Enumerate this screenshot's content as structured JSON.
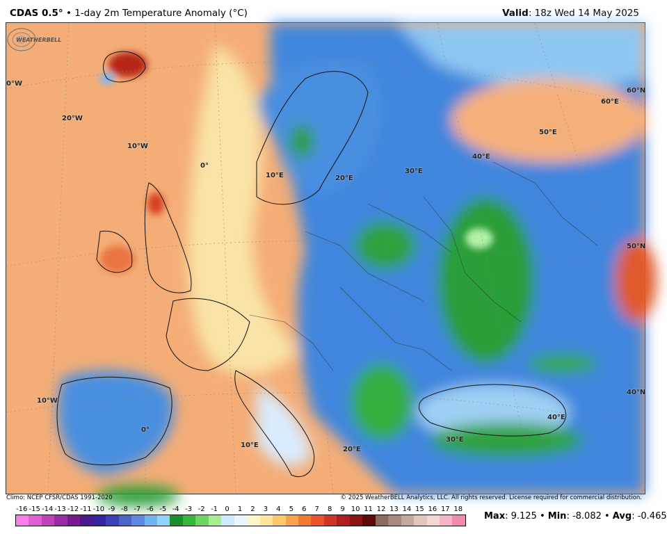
{
  "header": {
    "model": "CDAS 0.5°",
    "separator": "•",
    "product": "1-day 2m Temperature Anomaly (°C)",
    "valid_label": "Valid",
    "valid_value": ": 18z Wed 14 May 2025"
  },
  "map": {
    "grid_labels": [
      "0°W",
      "20°W",
      "10°W",
      "0°",
      "10°E",
      "20°E",
      "30°E",
      "40°E",
      "50°E",
      "60°E",
      "60°N",
      "50°N",
      "40°N",
      "10°W",
      "0°",
      "10°E",
      "20°E",
      "30°E",
      "40°E"
    ],
    "logo_text": "WEATHERBELL"
  },
  "footer": {
    "climo": "Climo: NCEP CFSR/CDAS 1991-2020",
    "copyright": "© 2025 WeatherBELL Analytics, LLC. All rights reserved. License required for commercial distribution."
  },
  "colorbar": {
    "ticks": [
      "-16",
      "-15",
      "-14",
      "-13",
      "-12",
      "-11",
      "-10",
      "-9",
      "-8",
      "-7",
      "-6",
      "-5",
      "-4",
      "-3",
      "-2",
      "-1",
      "0",
      "1",
      "2",
      "3",
      "4",
      "5",
      "6",
      "7",
      "8",
      "9",
      "10",
      "11",
      "12",
      "13",
      "14",
      "15",
      "16",
      "17",
      "18"
    ],
    "colors": [
      "#f57fe6",
      "#e05fd3",
      "#c142bd",
      "#9c2aa5",
      "#7a1890",
      "#4a1a8f",
      "#3624a0",
      "#3b3fb8",
      "#4a64c8",
      "#5c8ae0",
      "#71b5f0",
      "#8fd3ff",
      "#1a8f2a",
      "#36b63b",
      "#6fd55f",
      "#a6ee8f",
      "#cfe9ff",
      "#e9f5ff",
      "#fff7c9",
      "#fde59a",
      "#fbc96c",
      "#f7a24c",
      "#f27a32",
      "#e9532a",
      "#d33226",
      "#b01f1f",
      "#8a1414",
      "#5c0a0a",
      "#8c6a5e",
      "#a8877c",
      "#c6a79c",
      "#e2c6bc",
      "#f2d8d0",
      "#f7b4c6",
      "#f08ab0"
    ]
  },
  "stats": {
    "max_label": "Max",
    "max_value": ": 9.125 • ",
    "min_label": "Min",
    "min_value": ": -8.082 • ",
    "avg_label": "Avg",
    "avg_value": ": -0.465"
  },
  "colors": {
    "warm_anomaly": "#f3a56e",
    "strong_warm": "#d2401f",
    "cool_blue": "#3c7fd8",
    "cold_green": "#2f9e3a",
    "neutral": "#eaf4ff"
  }
}
